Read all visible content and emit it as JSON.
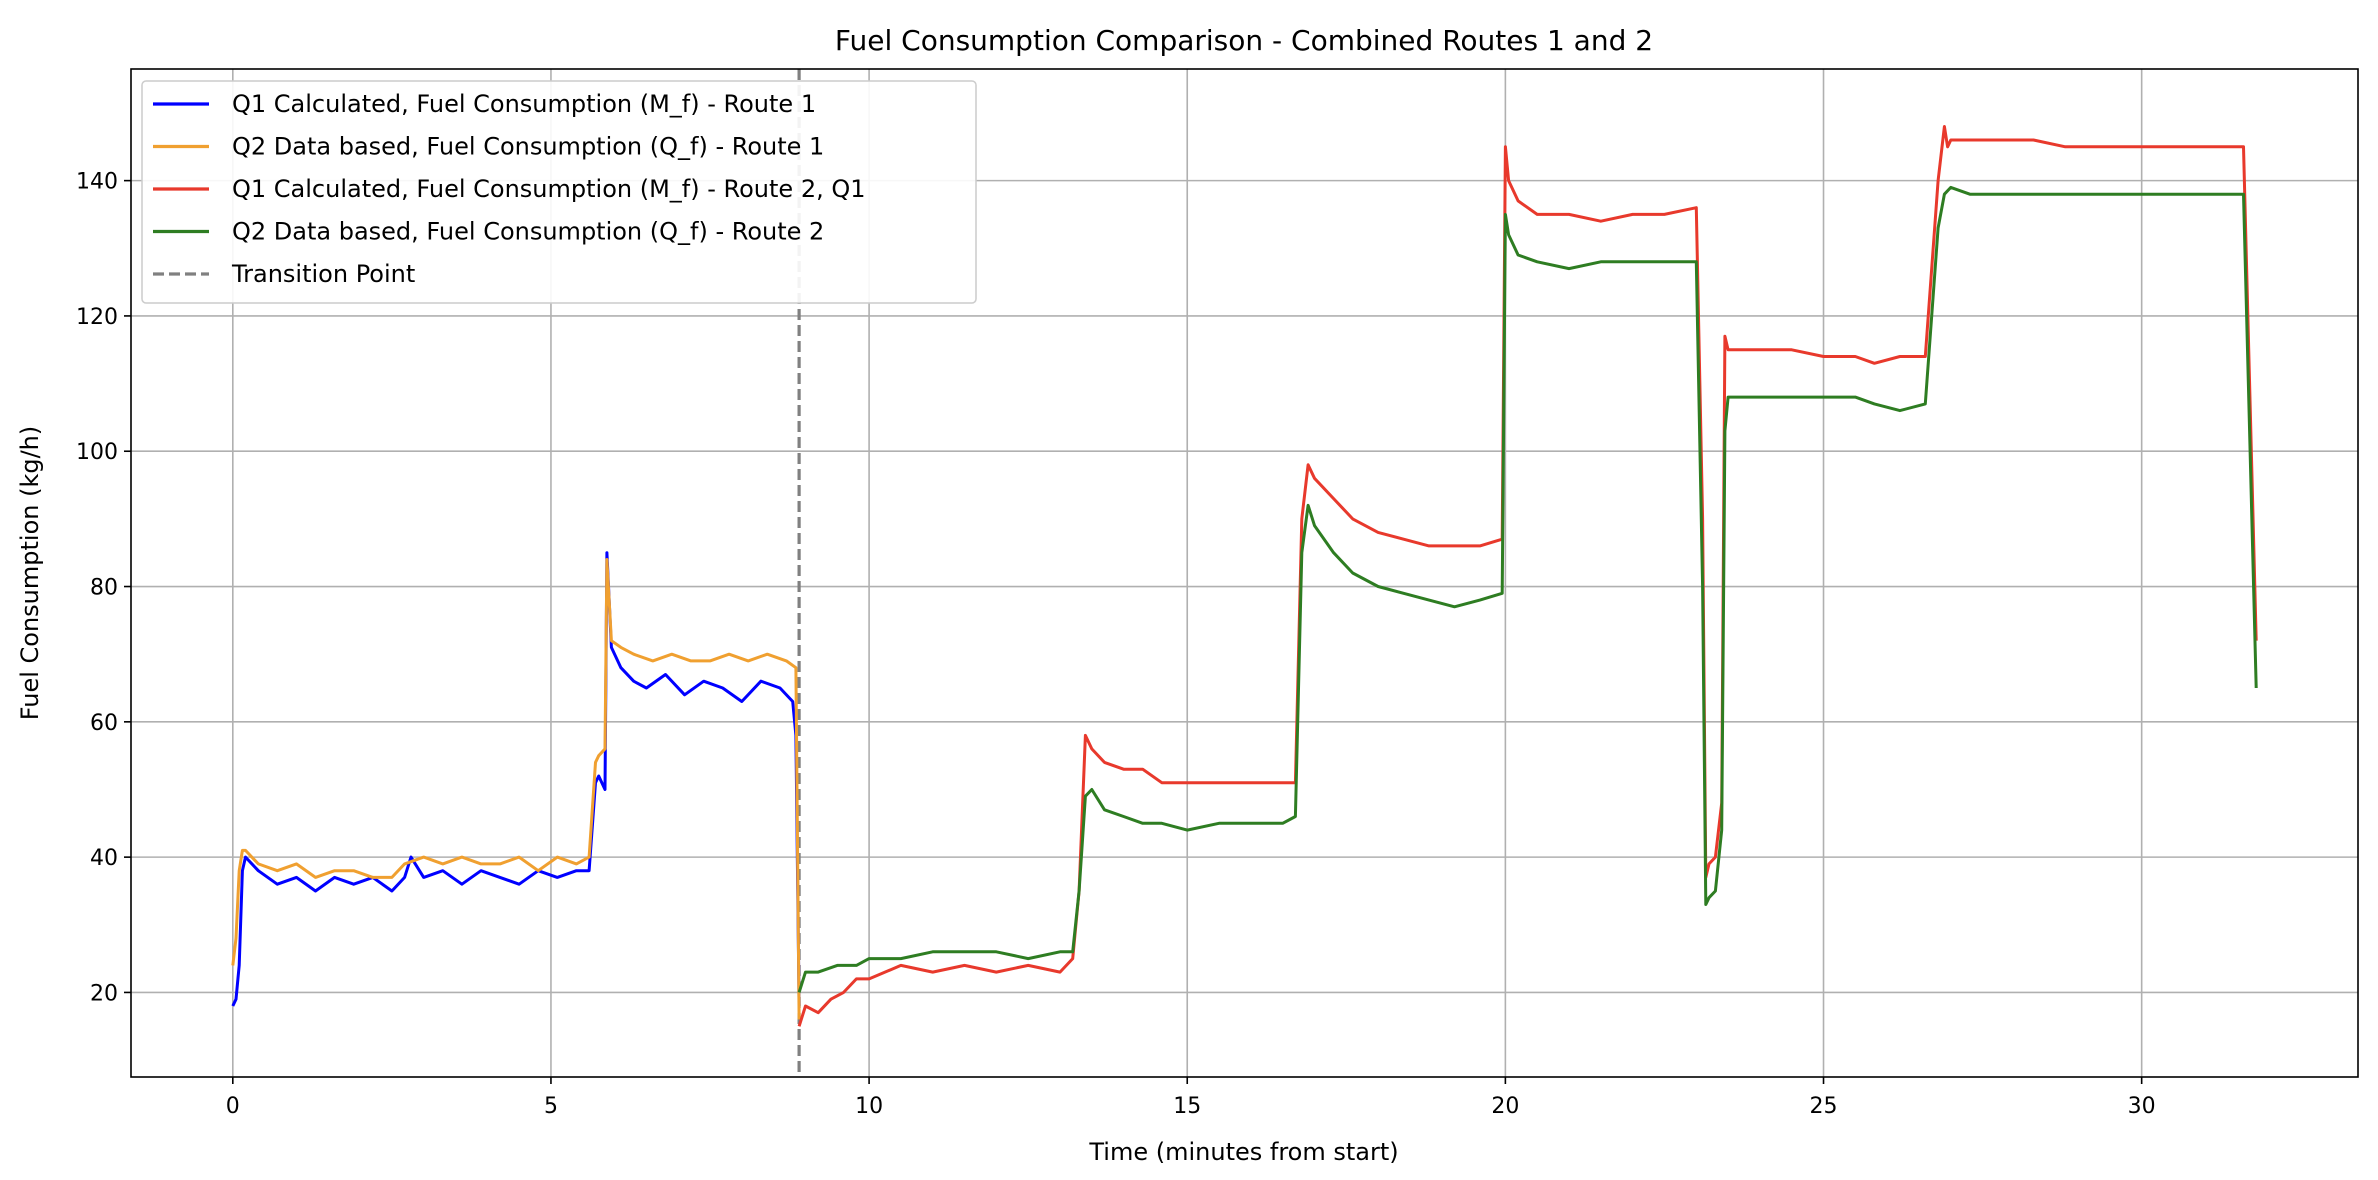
{
  "chart_data": {
    "type": "line",
    "title": "Fuel Consumption Comparison - Combined Routes 1 and 2",
    "xlabel": "Time (minutes from start)",
    "ylabel": "Fuel Consumption (kg/h)",
    "xlim": [
      -1.6,
      33.4
    ],
    "ylim": [
      7.5,
      156.5
    ],
    "xticks": [
      0,
      5,
      10,
      15,
      20,
      25,
      30
    ],
    "yticks": [
      20,
      40,
      60,
      80,
      100,
      120,
      140
    ],
    "grid": true,
    "legend_position": "upper-left",
    "transition_point": {
      "x": 8.9,
      "label": "Transition Point",
      "color": "#808080"
    },
    "series": [
      {
        "name": "Q1 Calculated, Fuel Consumption (M_f) - Route 1",
        "color": "#0000ff",
        "x": [
          0.0,
          0.05,
          0.1,
          0.15,
          0.2,
          0.4,
          0.7,
          1.0,
          1.3,
          1.6,
          1.9,
          2.2,
          2.5,
          2.7,
          2.8,
          3.0,
          3.3,
          3.6,
          3.9,
          4.2,
          4.5,
          4.8,
          5.1,
          5.4,
          5.6,
          5.7,
          5.75,
          5.85,
          5.88,
          5.95,
          6.1,
          6.3,
          6.5,
          6.8,
          7.1,
          7.4,
          7.7,
          8.0,
          8.3,
          8.6,
          8.8,
          8.85,
          8.9
        ],
        "y": [
          18,
          19,
          24,
          38,
          40,
          38,
          36,
          37,
          35,
          37,
          36,
          37,
          35,
          37,
          40,
          37,
          38,
          36,
          38,
          37,
          36,
          38,
          37,
          38,
          38,
          51,
          52,
          50,
          85,
          71,
          68,
          66,
          65,
          67,
          64,
          66,
          65,
          63,
          66,
          65,
          63,
          58,
          18
        ]
      },
      {
        "name": "Q2 Data based, Fuel Consumption (Q_f) - Route 1",
        "color": "#f0a030",
        "x": [
          0.0,
          0.05,
          0.1,
          0.15,
          0.2,
          0.4,
          0.7,
          1.0,
          1.3,
          1.6,
          1.9,
          2.2,
          2.5,
          2.7,
          3.0,
          3.3,
          3.6,
          3.9,
          4.2,
          4.5,
          4.8,
          5.1,
          5.4,
          5.6,
          5.7,
          5.75,
          5.85,
          5.88,
          5.95,
          6.1,
          6.3,
          6.6,
          6.9,
          7.2,
          7.5,
          7.8,
          8.1,
          8.4,
          8.7,
          8.85,
          8.9
        ],
        "y": [
          24,
          28,
          38,
          41,
          41,
          39,
          38,
          39,
          37,
          38,
          38,
          37,
          37,
          39,
          40,
          39,
          40,
          39,
          39,
          40,
          38,
          40,
          39,
          40,
          54,
          55,
          56,
          84,
          72,
          71,
          70,
          69,
          70,
          69,
          69,
          70,
          69,
          70,
          69,
          68,
          16
        ]
      },
      {
        "name": "Q1 Calculated, Fuel Consumption (M_f) - Route 2, Q1",
        "color": "#e8392c",
        "x": [
          8.9,
          9.0,
          9.2,
          9.4,
          9.6,
          9.8,
          10.0,
          10.5,
          11.0,
          11.5,
          12.0,
          12.5,
          13.0,
          13.2,
          13.3,
          13.4,
          13.5,
          13.7,
          14.0,
          14.3,
          14.6,
          14.9,
          15.3,
          15.8,
          16.3,
          16.7,
          16.8,
          16.9,
          17.0,
          17.3,
          17.6,
          18.0,
          18.4,
          18.8,
          19.2,
          19.6,
          19.95,
          20.0,
          20.05,
          20.2,
          20.5,
          21.0,
          21.5,
          22.0,
          22.5,
          23.0,
          23.1,
          23.15,
          23.2,
          23.3,
          23.4,
          23.45,
          23.5,
          23.6,
          24.0,
          24.5,
          25.0,
          25.5,
          25.8,
          26.2,
          26.6,
          26.8,
          26.9,
          26.95,
          27.0,
          27.3,
          27.8,
          28.3,
          28.8,
          29.3,
          29.8,
          30.3,
          30.8,
          31.3,
          31.6,
          31.8
        ],
        "y": [
          15,
          18,
          17,
          19,
          20,
          22,
          22,
          24,
          23,
          24,
          23,
          24,
          23,
          25,
          35,
          58,
          56,
          54,
          53,
          53,
          51,
          51,
          51,
          51,
          51,
          51,
          90,
          98,
          96,
          93,
          90,
          88,
          87,
          86,
          86,
          86,
          87,
          145,
          140,
          137,
          135,
          135,
          134,
          135,
          135,
          136,
          90,
          37,
          39,
          40,
          48,
          117,
          115,
          115,
          115,
          115,
          114,
          114,
          113,
          114,
          114,
          140,
          148,
          145,
          146,
          146,
          146,
          146,
          145,
          145,
          145,
          145,
          145,
          145,
          145,
          72
        ]
      },
      {
        "name": "Q2 Data based, Fuel Consumption (Q_f) - Route 2",
        "color": "#2e7d22",
        "x": [
          8.9,
          9.0,
          9.2,
          9.5,
          9.8,
          10.0,
          10.5,
          11.0,
          11.5,
          12.0,
          12.5,
          13.0,
          13.2,
          13.3,
          13.4,
          13.5,
          13.7,
          14.0,
          14.3,
          14.6,
          15.0,
          15.5,
          16.0,
          16.5,
          16.7,
          16.8,
          16.9,
          17.0,
          17.3,
          17.6,
          18.0,
          18.4,
          18.8,
          19.2,
          19.6,
          19.95,
          20.0,
          20.05,
          20.2,
          20.5,
          21.0,
          21.5,
          22.0,
          22.5,
          23.0,
          23.1,
          23.15,
          23.2,
          23.3,
          23.4,
          23.45,
          23.5,
          23.6,
          24.0,
          24.5,
          25.0,
          25.5,
          25.8,
          26.2,
          26.6,
          26.8,
          26.9,
          27.0,
          27.3,
          27.8,
          28.3,
          28.8,
          29.3,
          29.8,
          30.3,
          30.8,
          31.3,
          31.6,
          31.8
        ],
        "y": [
          20,
          23,
          23,
          24,
          24,
          25,
          25,
          26,
          26,
          26,
          25,
          26,
          26,
          35,
          49,
          50,
          47,
          46,
          45,
          45,
          44,
          45,
          45,
          45,
          46,
          85,
          92,
          89,
          85,
          82,
          80,
          79,
          78,
          77,
          78,
          79,
          135,
          132,
          129,
          128,
          127,
          128,
          128,
          128,
          128,
          80,
          33,
          34,
          35,
          44,
          103,
          108,
          108,
          108,
          108,
          108,
          108,
          107,
          106,
          107,
          133,
          138,
          139,
          138,
          138,
          138,
          138,
          138,
          138,
          138,
          138,
          138,
          138,
          65
        ]
      }
    ]
  }
}
